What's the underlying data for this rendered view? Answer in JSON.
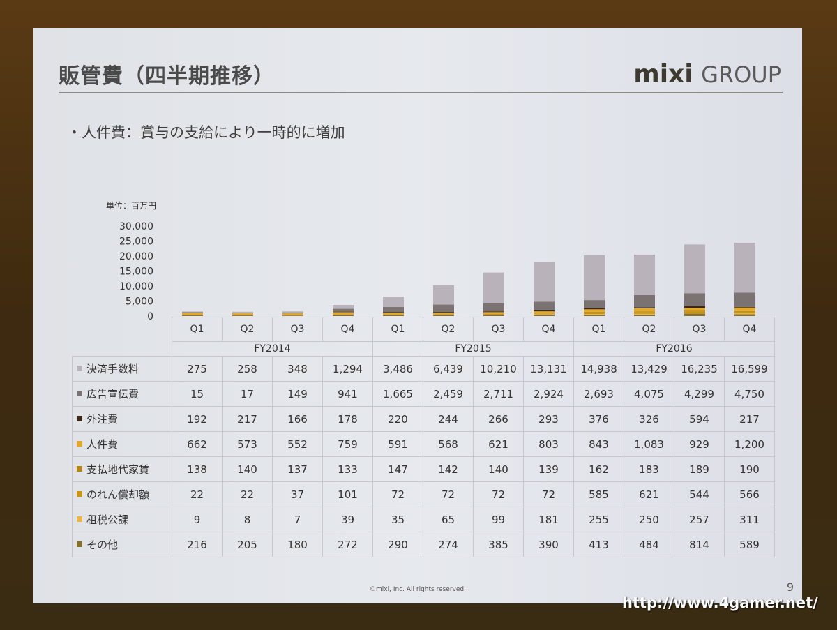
{
  "slide": {
    "title": "販管費（四半期推移）",
    "logo_mixi": "mixi",
    "logo_group": "GROUP",
    "bullet": "・人件費：賞与の支給により一時的に増加",
    "unit": "単位：百万円",
    "footer": "©mixi, Inc. All rights reserved.",
    "page_number": "9"
  },
  "watermark": "http://www.4gamer.net/",
  "chart_data": {
    "type": "bar",
    "stacked": true,
    "title": "販管費（四半期推移）",
    "ylabel": "単位：百万円",
    "ylim": [
      0,
      30000
    ],
    "yticks": [
      "30,000",
      "25,000",
      "20,000",
      "15,000",
      "10,000",
      "5,000",
      "0"
    ],
    "ytick_values": [
      30000,
      25000,
      20000,
      15000,
      10000,
      5000,
      0
    ],
    "categories": [
      "Q1",
      "Q2",
      "Q3",
      "Q4",
      "Q1",
      "Q2",
      "Q3",
      "Q4",
      "Q1",
      "Q2",
      "Q3",
      "Q4"
    ],
    "groups": [
      "FY2014",
      "FY2015",
      "FY2016"
    ],
    "series": [
      {
        "name": "決済手数料",
        "color": "#b9b2ba",
        "values": [
          275,
          258,
          348,
          1294,
          3486,
          6439,
          10210,
          13131,
          14938,
          13429,
          16235,
          16599
        ]
      },
      {
        "name": "広告宣伝費",
        "color": "#7b7272",
        "values": [
          15,
          17,
          149,
          941,
          1665,
          2459,
          2711,
          2924,
          2693,
          4075,
          4299,
          4750
        ]
      },
      {
        "name": "外注費",
        "color": "#3a2818",
        "values": [
          192,
          217,
          166,
          178,
          220,
          244,
          266,
          293,
          376,
          326,
          594,
          217
        ]
      },
      {
        "name": "人件費",
        "color": "#e2a92a",
        "values": [
          662,
          573,
          552,
          759,
          591,
          568,
          621,
          803,
          843,
          1083,
          929,
          1200
        ]
      },
      {
        "name": "支払地代家賃",
        "color": "#b88414",
        "values": [
          138,
          140,
          137,
          133,
          147,
          142,
          140,
          139,
          162,
          183,
          189,
          190
        ]
      },
      {
        "name": "のれん償却額",
        "color": "#c9940e",
        "values": [
          22,
          22,
          37,
          101,
          72,
          72,
          72,
          72,
          585,
          621,
          544,
          566
        ]
      },
      {
        "name": "租税公課",
        "color": "#ebb548",
        "values": [
          9,
          8,
          7,
          39,
          35,
          65,
          99,
          181,
          255,
          250,
          257,
          311
        ]
      },
      {
        "name": "その他",
        "color": "#86702e",
        "values": [
          216,
          205,
          180,
          272,
          290,
          274,
          385,
          390,
          413,
          484,
          814,
          589
        ]
      }
    ],
    "stack_order_bottom_to_top": [
      "その他",
      "租税公課",
      "のれん償却額",
      "支払地代家賃",
      "人件費",
      "外注費",
      "広告宣伝費",
      "決済手数料"
    ],
    "grid": false,
    "legend": "table-below"
  }
}
